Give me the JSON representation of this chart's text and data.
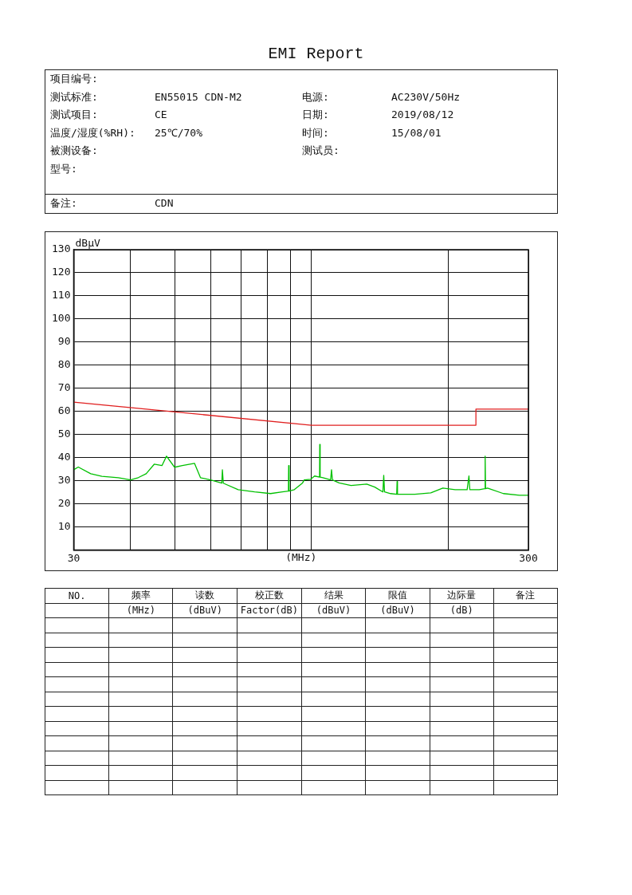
{
  "chart_data": [
    {
      "type": "other",
      "title": "EMI Report",
      "annotations": [
        "项目编号:",
        null,
        null,
        null,
        "测试标准:",
        "EN55015 CDN-M2",
        "电源:",
        "AC230V/50Hz",
        "测试项目:",
        "CE",
        "日期:",
        "2019/08/12",
        "温度/湿度(%RH):",
        "25℃/70%",
        "时间:",
        "15/08/01",
        "被测设备:",
        null,
        "测试员:",
        null,
        "型号:",
        null,
        null,
        null,
        "备注:",
        "CDN",
        null,
        null
      ]
    },
    {
      "type": "line",
      "xlabel": "(MHz)",
      "ylabel": "dBμV",
      "log": "x",
      "grid": true,
      "legend": false,
      "marker": "none",
      "line_style": "solid",
      "xlim": [
        30,
        300
      ],
      "xticks": [
        {
          "value": 30,
          "label": "30"
        },
        {
          "value": 40,
          "label": null
        },
        {
          "value": 50,
          "label": null
        },
        {
          "value": 60,
          "label": null
        },
        {
          "value": 70,
          "label": null
        },
        {
          "value": 80,
          "label": null
        },
        {
          "value": 90,
          "label": null
        },
        {
          "value": 100,
          "label": null
        },
        {
          "value": 200,
          "label": null
        },
        {
          "value": 300,
          "label": "300"
        }
      ],
      "ylim": [
        0,
        130
      ],
      "yticks": [
        10,
        20,
        30,
        40,
        50,
        60,
        70,
        80,
        90,
        100,
        110,
        120,
        130
      ],
      "series": [
        {
          "color": "#e02020",
          "x": [
            30,
            100,
            230,
            230,
            300
          ],
          "values": [
            64,
            54,
            54,
            61,
            61
          ]
        },
        {
          "color": "#00c000",
          "x": [
            30,
            30.7,
            32.7,
            34.6,
            37.6,
            40,
            41.6,
            43.3,
            45.1,
            46.9,
            48,
            50,
            52,
            55.3,
            57,
            60,
            63.5,
            63.7,
            64,
            69,
            75,
            81.3,
            86.3,
            89,
            89.1,
            89.3,
            91.7,
            95.6,
            96.4,
            99.6,
            101.6,
            104.2,
            104.3,
            104.5,
            106,
            110.2,
            110.7,
            111.2,
            115,
            122.2,
            132.3,
            137.8,
            143.6,
            144.2,
            144.8,
            149.3,
            154,
            154.3,
            154.6,
            155.6,
            168.8,
            183,
            194.5,
            207,
            220,
            222,
            223,
            234,
            240.5,
            241,
            241.5,
            243.9,
            264.3,
            286.8,
            300
          ],
          "values": [
            34.7,
            35.9,
            33,
            31.9,
            31.3,
            30.3,
            31.3,
            33,
            37.1,
            36.5,
            40.6,
            35.8,
            36.5,
            37.5,
            31.3,
            30.3,
            28.9,
            34.7,
            28.9,
            26.1,
            25.1,
            24.4,
            25.1,
            25.5,
            36.5,
            25.5,
            26.1,
            29,
            30.3,
            30.6,
            32,
            31.5,
            45.7,
            31.5,
            31.3,
            30.3,
            34.7,
            30.3,
            29,
            27.9,
            28.5,
            27.2,
            25.1,
            32.3,
            25.1,
            24.4,
            24.1,
            29.6,
            24.1,
            24.1,
            24.1,
            24.7,
            26.8,
            26.1,
            26.1,
            32,
            26.1,
            26.1,
            26.5,
            40.6,
            26.5,
            26.8,
            24.4,
            23.7,
            23.7
          ]
        }
      ]
    },
    {
      "type": "other",
      "annotations": [
        "NO.",
        "频率",
        "读数",
        "校正数",
        "结果",
        "限值",
        "边际量",
        "备注",
        null,
        "(MHz)",
        "(dBuV)",
        "Factor(dB)",
        "(dBuV)",
        "(dBuV)",
        "(dB)",
        null
      ]
    }
  ]
}
